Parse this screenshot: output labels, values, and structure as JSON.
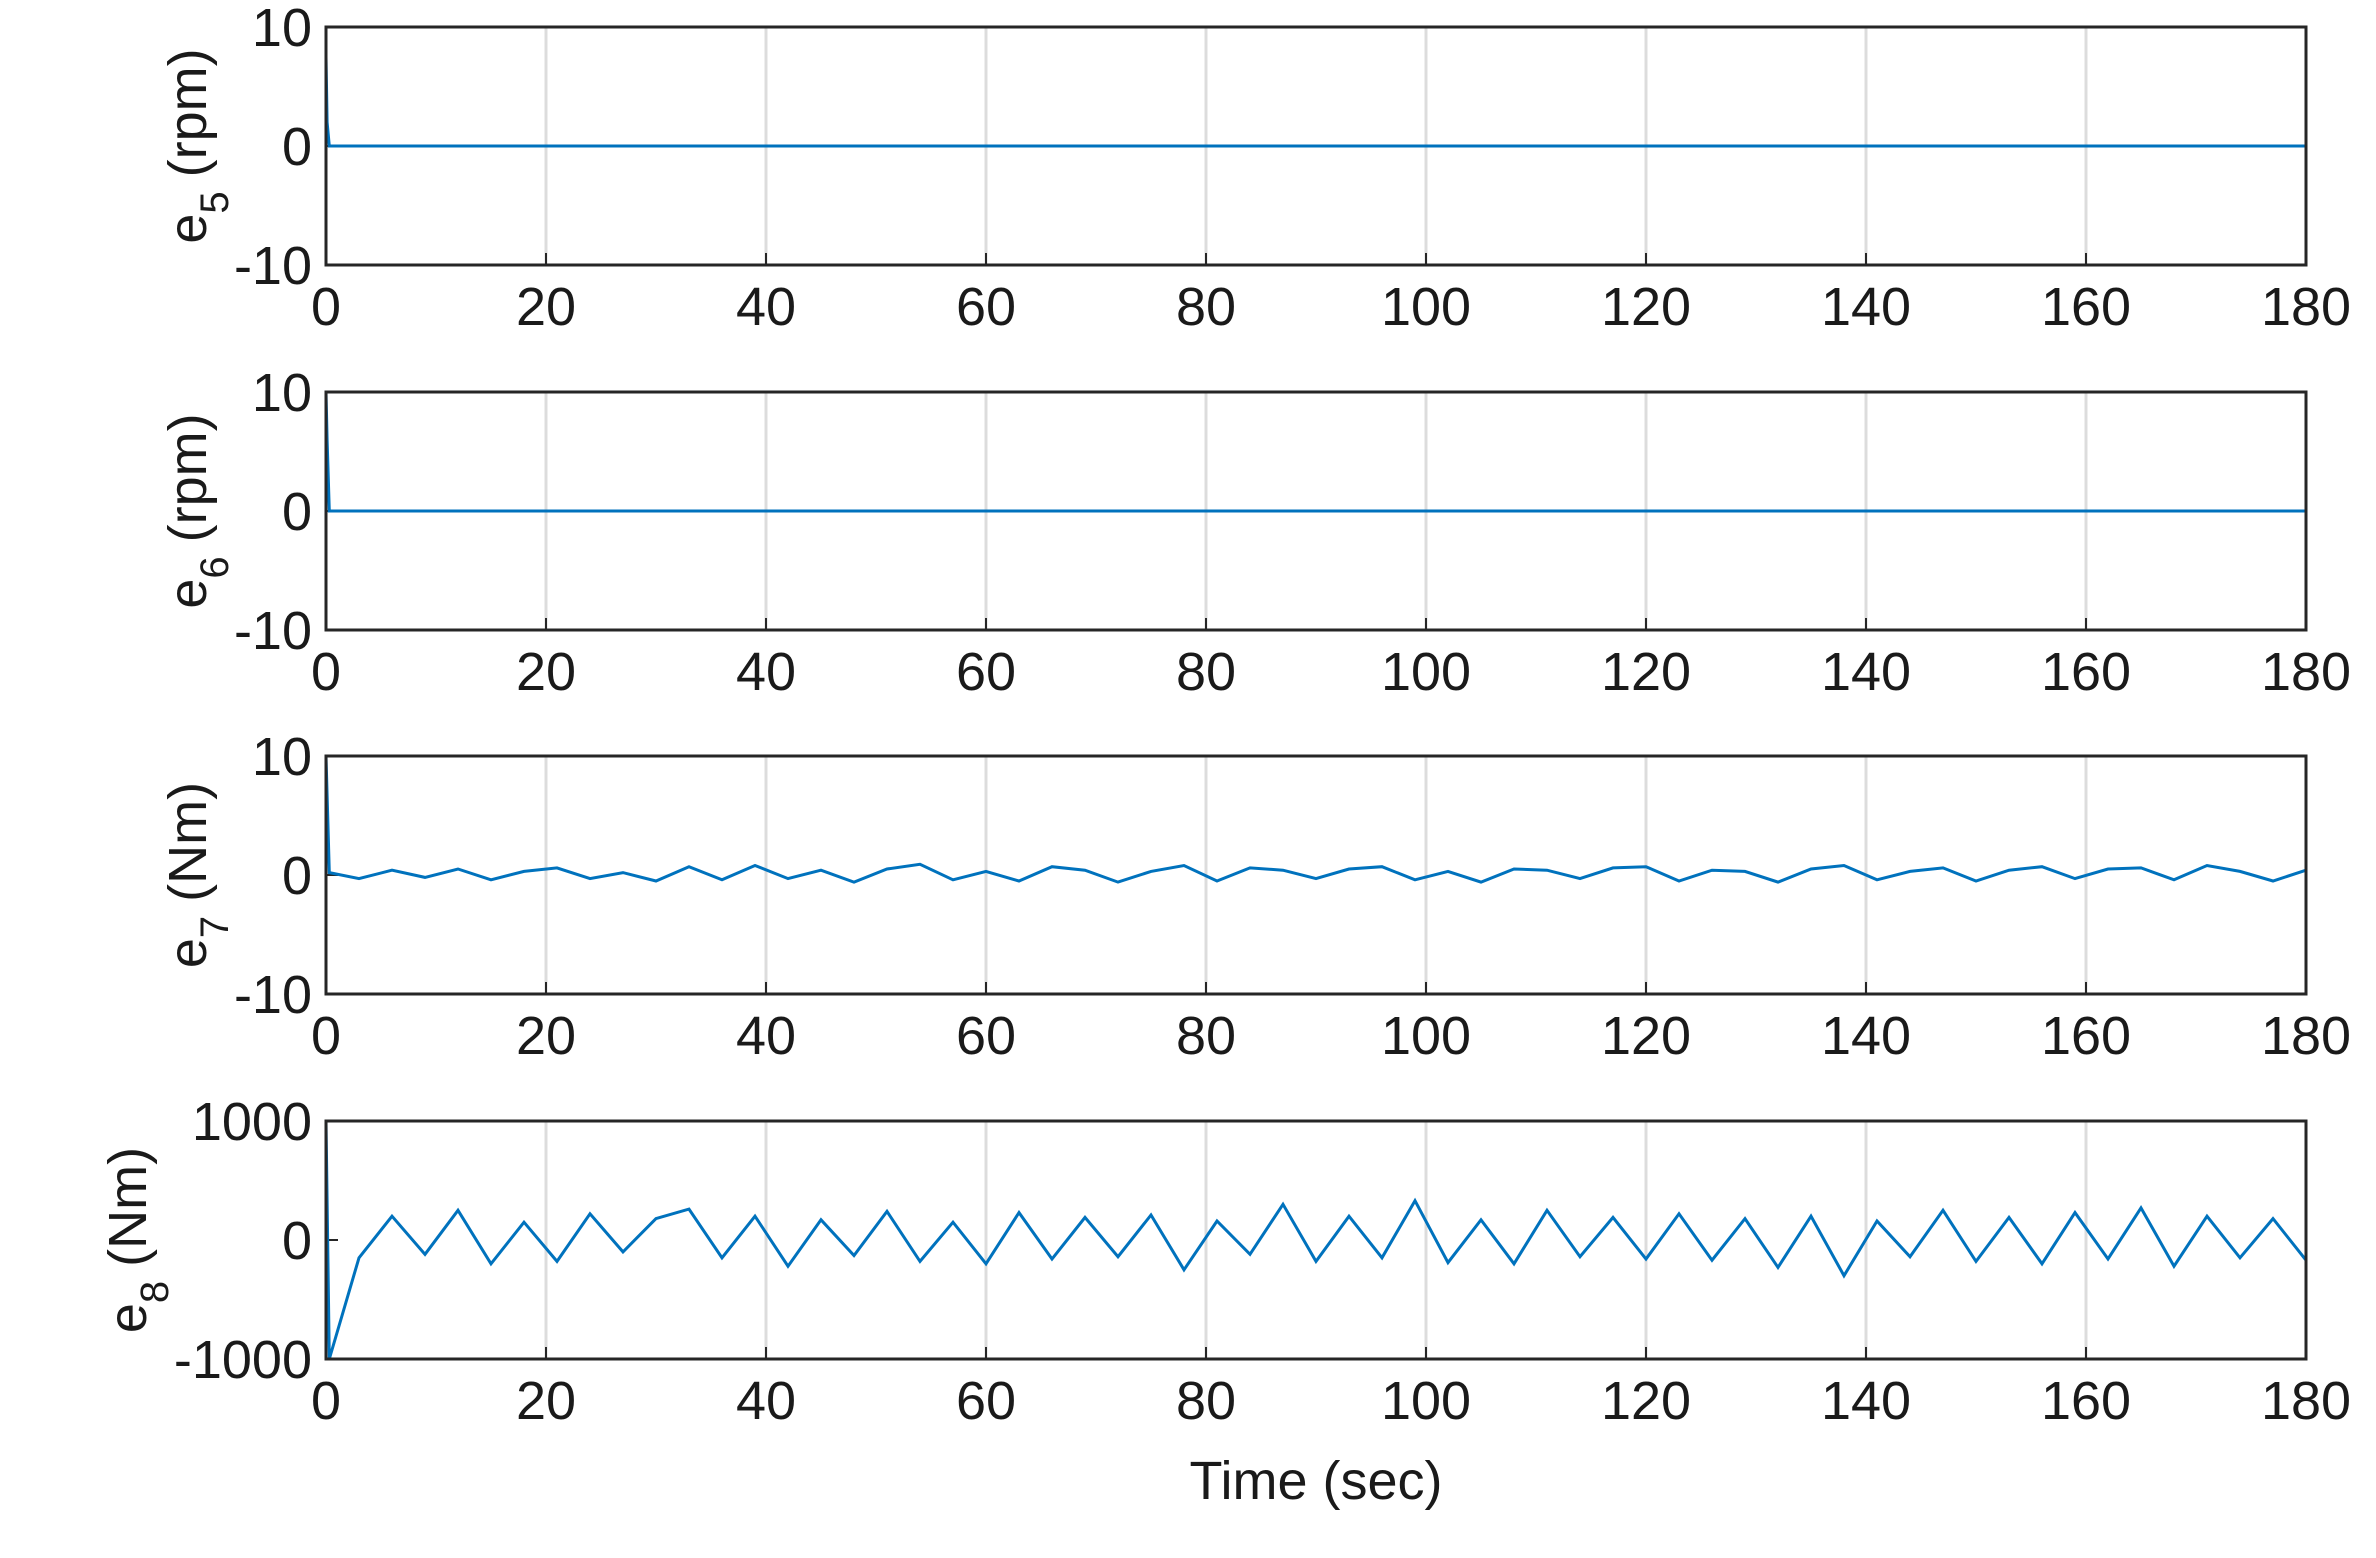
{
  "chart_data": [
    {
      "type": "line",
      "ylabel_parts": [
        "e",
        "5",
        "(rpm)"
      ],
      "x": [
        0,
        0.1,
        0.3,
        180
      ],
      "series": [
        {
          "color": "#0072bd",
          "values": [
            7.5,
            2,
            0,
            0
          ]
        }
      ],
      "xlim": [
        0,
        180
      ],
      "xticks": [
        0,
        20,
        40,
        60,
        80,
        100,
        120,
        140,
        160,
        180
      ],
      "ylim": [
        -10,
        10
      ],
      "yticks": [
        -10,
        0,
        10
      ],
      "grid": "x"
    },
    {
      "type": "line",
      "ylabel_parts": [
        "e",
        "6",
        "(rpm)"
      ],
      "x": [
        0,
        0.1,
        0.3,
        180
      ],
      "series": [
        {
          "color": "#0072bd",
          "values": [
            10,
            6,
            0,
            0
          ]
        }
      ],
      "xlim": [
        0,
        180
      ],
      "xticks": [
        0,
        20,
        40,
        60,
        80,
        100,
        120,
        140,
        160,
        180
      ],
      "ylim": [
        -10,
        10
      ],
      "yticks": [
        -10,
        0,
        10
      ],
      "grid": "x"
    },
    {
      "type": "line",
      "ylabel_parts": [
        "e",
        "7",
        "(Nm)"
      ],
      "x": [
        0,
        0.3,
        3,
        6,
        9,
        12,
        15,
        18,
        21,
        24,
        27,
        30,
        33,
        36,
        39,
        42,
        45,
        48,
        51,
        54,
        57,
        60,
        63,
        66,
        69,
        72,
        75,
        78,
        81,
        84,
        87,
        90,
        93,
        96,
        99,
        102,
        105,
        108,
        111,
        114,
        117,
        120,
        123,
        126,
        129,
        132,
        135,
        138,
        141,
        144,
        147,
        150,
        153,
        156,
        159,
        162,
        165,
        168,
        171,
        174,
        177,
        180
      ],
      "series": [
        {
          "color": "#0072bd",
          "values": [
            10,
            0.2,
            -0.3,
            0.4,
            -0.2,
            0.5,
            -0.4,
            0.3,
            0.6,
            -0.3,
            0.2,
            -0.5,
            0.7,
            -0.4,
            0.8,
            -0.3,
            0.4,
            -0.6,
            0.5,
            0.9,
            -0.4,
            0.3,
            -0.5,
            0.7,
            0.4,
            -0.6,
            0.3,
            0.8,
            -0.5,
            0.6,
            0.4,
            -0.3,
            0.5,
            0.7,
            -0.4,
            0.3,
            -0.6,
            0.5,
            0.4,
            -0.3,
            0.6,
            0.7,
            -0.5,
            0.4,
            0.3,
            -0.6,
            0.5,
            0.8,
            -0.4,
            0.3,
            0.6,
            -0.5,
            0.4,
            0.7,
            -0.3,
            0.5,
            0.6,
            -0.4,
            0.8,
            0.3,
            -0.5,
            0.4
          ]
        }
      ],
      "xlim": [
        0,
        180
      ],
      "xticks": [
        0,
        20,
        40,
        60,
        80,
        100,
        120,
        140,
        160,
        180
      ],
      "ylim": [
        -10,
        10
      ],
      "yticks": [
        -10,
        0,
        10
      ],
      "grid": "x"
    },
    {
      "type": "line",
      "ylabel_parts": [
        "e",
        "8",
        "(Nm)"
      ],
      "xlabel": "Time (sec)",
      "x": [
        0,
        0.3,
        3,
        6,
        9,
        12,
        15,
        18,
        21,
        24,
        27,
        30,
        33,
        36,
        39,
        42,
        45,
        48,
        51,
        54,
        57,
        60,
        63,
        66,
        69,
        72,
        75,
        78,
        81,
        84,
        87,
        90,
        93,
        96,
        99,
        102,
        105,
        108,
        111,
        114,
        117,
        120,
        123,
        126,
        129,
        132,
        135,
        138,
        141,
        144,
        147,
        150,
        153,
        156,
        159,
        162,
        165,
        168,
        171,
        174,
        177,
        180
      ],
      "series": [
        {
          "color": "#0072bd",
          "values": [
            1000,
            -1000,
            -150,
            200,
            -120,
            250,
            -200,
            150,
            -180,
            220,
            -100,
            180,
            260,
            -150,
            200,
            -220,
            170,
            -130,
            240,
            -180,
            150,
            -200,
            230,
            -160,
            190,
            -140,
            210,
            -250,
            160,
            -120,
            300,
            -180,
            200,
            -150,
            330,
            -190,
            170,
            -200,
            250,
            -140,
            190,
            -160,
            220,
            -170,
            180,
            -230,
            200,
            -300,
            160,
            -140,
            250,
            -180,
            190,
            -200,
            230,
            -160,
            270,
            -220,
            200,
            -150,
            180,
            -170
          ]
        }
      ],
      "xlim": [
        0,
        180
      ],
      "xticks": [
        0,
        20,
        40,
        60,
        80,
        100,
        120,
        140,
        160,
        180
      ],
      "ylim": [
        -1000,
        1000
      ],
      "yticks": [
        -1000,
        0,
        1000
      ],
      "grid": "x"
    }
  ]
}
